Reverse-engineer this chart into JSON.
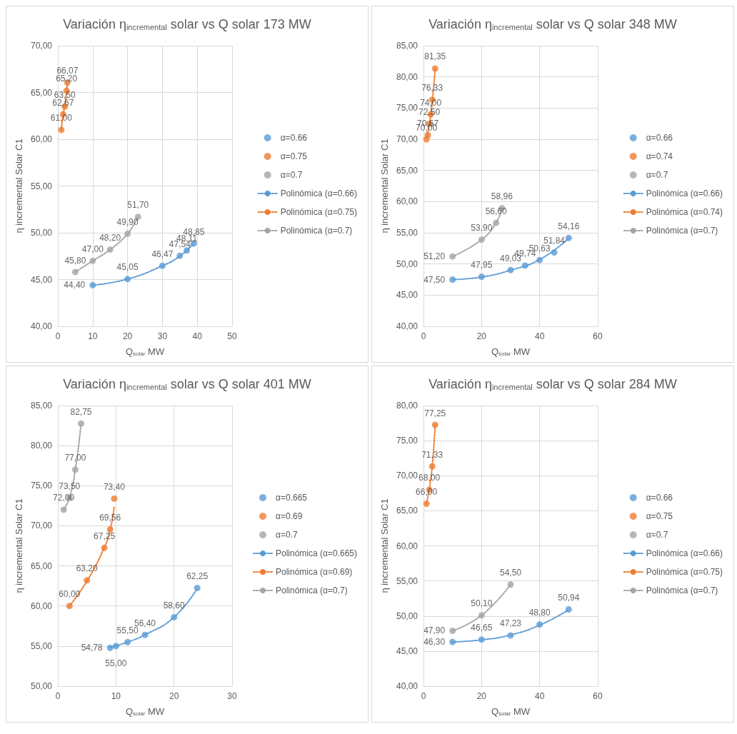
{
  "chart_data": [
    {
      "type": "scatter",
      "title": "Variación η$_{incremental}$ solar vs Q solar 173 MW",
      "xlabel": "Q$_{solar}$ MW",
      "ylabel": "η incremental Solar C1",
      "xlim": [
        0,
        50
      ],
      "xticks": [
        0,
        10,
        20,
        30,
        40,
        50
      ],
      "ylim": [
        40,
        70
      ],
      "yticks": [
        {
          "value": 40,
          "label": "40,00"
        },
        {
          "value": 45,
          "label": "45,00"
        },
        {
          "value": 50,
          "label": "50,00"
        },
        {
          "value": 55,
          "label": "55,00"
        },
        {
          "value": 60,
          "label": "60,00"
        },
        {
          "value": 65,
          "label": "65,00"
        },
        {
          "value": 70,
          "label": "70,00"
        }
      ],
      "grid": true,
      "legend": "right",
      "marker": "circle",
      "series": [
        {
          "name": "α=0.66",
          "color": "#5b9bd5",
          "x": [
            10,
            20,
            30,
            35,
            37,
            39
          ],
          "values": [
            44.4,
            45.05,
            46.47,
            47.54,
            48.11,
            48.85
          ],
          "value_labels": [
            "44,40",
            "45,05",
            "46,47",
            "47,54",
            "48,11",
            "48,85"
          ]
        },
        {
          "name": "α=0.75",
          "color": "#ed7d31",
          "x": [
            1,
            1.5,
            2,
            2.5,
            2.75
          ],
          "values": [
            61,
            62.67,
            63.5,
            65.2,
            66.07
          ],
          "value_labels": [
            "61,00",
            "62,67",
            "63,50",
            "65,20",
            "66,07"
          ]
        },
        {
          "name": "α=0.7",
          "color": "#a5a5a5",
          "x": [
            5,
            10,
            15,
            20,
            23
          ],
          "values": [
            45.8,
            47,
            48.2,
            49.9,
            51.7
          ],
          "value_labels": [
            "45,80",
            "47,00",
            "48,20",
            "49,90",
            "51,70"
          ]
        },
        {
          "name": "Polinómica (α=0.66)",
          "type": "line",
          "color": "#5b9bd5",
          "line_style": "dotted",
          "marker": "none",
          "x": [
            10,
            20,
            30,
            35,
            39
          ],
          "values": [
            44.4,
            45.05,
            46.47,
            47.5,
            48.85
          ]
        },
        {
          "name": "Polinómica (α=0.75)",
          "type": "line",
          "color": "#ed7d31",
          "line_style": "dotted",
          "marker": "none",
          "x": [
            1,
            1.5,
            2,
            2.5,
            2.75
          ],
          "values": [
            61,
            62.6,
            63.6,
            65.1,
            66.1
          ]
        },
        {
          "name": "Polinómica (α=0.7)",
          "type": "line",
          "color": "#a5a5a5",
          "line_style": "dotted",
          "marker": "none",
          "x": [
            5,
            10,
            15,
            20,
            23
          ],
          "values": [
            45.8,
            47,
            48.2,
            49.9,
            51.7
          ]
        }
      ]
    },
    {
      "type": "scatter",
      "title": "Variación η$_{incremental}$ solar vs Q solar 348 MW",
      "xlabel": "Q$_{solar}$ MW",
      "ylabel": "η incremental Solar C1",
      "xlim": [
        0,
        60
      ],
      "xticks": [
        0,
        20,
        40,
        60
      ],
      "ylim": [
        40,
        85
      ],
      "yticks": [
        {
          "value": 40,
          "label": "40,00"
        },
        {
          "value": 45,
          "label": "45,00"
        },
        {
          "value": 50,
          "label": "50,00"
        },
        {
          "value": 55,
          "label": "55,00"
        },
        {
          "value": 60,
          "label": "60,00"
        },
        {
          "value": 65,
          "label": "65,00"
        },
        {
          "value": 70,
          "label": "70,00"
        },
        {
          "value": 75,
          "label": "75,00"
        },
        {
          "value": 80,
          "label": "80,00"
        },
        {
          "value": 85,
          "label": "85,00"
        }
      ],
      "grid": true,
      "legend": "right",
      "marker": "circle",
      "series": [
        {
          "name": "α=0.66",
          "color": "#5b9bd5",
          "x": [
            10,
            20,
            30,
            35,
            40,
            45,
            50
          ],
          "values": [
            47.5,
            47.95,
            49.03,
            49.74,
            50.63,
            51.84,
            54.16
          ],
          "value_labels": [
            "47,50",
            "47,95",
            "49,03",
            "49,74",
            "50,63",
            "51,84",
            "54,16"
          ]
        },
        {
          "name": "α=0.74",
          "color": "#ed7d31",
          "x": [
            1,
            1.5,
            2,
            2.5,
            3,
            4
          ],
          "values": [
            70,
            70.67,
            72.5,
            74,
            76.33,
            81.35
          ],
          "value_labels": [
            "70,00",
            "70,67",
            "72,50",
            "74,00",
            "76,33",
            "81,35"
          ]
        },
        {
          "name": "α=0.7",
          "color": "#a5a5a5",
          "x": [
            10,
            20,
            25,
            27
          ],
          "values": [
            51.2,
            53.9,
            56.6,
            58.96
          ],
          "value_labels": [
            "51,20",
            "53,90",
            "56,60",
            "58,96"
          ]
        },
        {
          "name": "Polinómica (α=0.66)",
          "type": "line",
          "color": "#5b9bd5",
          "line_style": "dotted",
          "marker": "none",
          "x": [
            10,
            20,
            30,
            40,
            50
          ],
          "values": [
            47.5,
            47.9,
            49,
            50.7,
            54.1
          ]
        },
        {
          "name": "Polinómica (α=0.74)",
          "type": "line",
          "color": "#ed7d31",
          "line_style": "dotted",
          "marker": "none",
          "x": [
            1,
            2,
            3,
            4
          ],
          "values": [
            70.2,
            72.3,
            76,
            81.3
          ]
        },
        {
          "name": "Polinómica (α=0.7)",
          "type": "line",
          "color": "#a5a5a5",
          "line_style": "dotted",
          "marker": "none",
          "x": [
            10,
            20,
            25,
            27
          ],
          "values": [
            51.2,
            53.9,
            56.6,
            58.96
          ]
        }
      ]
    },
    {
      "type": "scatter",
      "title": "Variación η$_{incremental}$ solar vs Q solar 401 MW",
      "xlabel": "Q$_{solar}$ MW",
      "ylabel": "η incremental Solar C1",
      "xlim": [
        0,
        30
      ],
      "xticks": [
        0,
        10,
        20,
        30
      ],
      "ylim": [
        50,
        85
      ],
      "yticks": [
        {
          "value": 50,
          "label": "50,00"
        },
        {
          "value": 55,
          "label": "55,00"
        },
        {
          "value": 60,
          "label": "60,00"
        },
        {
          "value": 65,
          "label": "65,00"
        },
        {
          "value": 70,
          "label": "70,00"
        },
        {
          "value": 75,
          "label": "75,00"
        },
        {
          "value": 80,
          "label": "80,00"
        },
        {
          "value": 85,
          "label": "85,00"
        }
      ],
      "grid": true,
      "legend": "right",
      "marker": "circle",
      "series": [
        {
          "name": "α=0.665",
          "color": "#5b9bd5",
          "x": [
            9,
            10,
            12,
            15,
            20,
            24
          ],
          "values": [
            54.78,
            55,
            55.5,
            56.4,
            58.6,
            62.25
          ],
          "value_labels": [
            "54,78",
            "55,00",
            "55,50",
            "56,40",
            "58,60",
            "62,25"
          ]
        },
        {
          "name": "α=0.69",
          "color": "#ed7d31",
          "x": [
            2,
            5,
            8,
            9,
            9.7
          ],
          "values": [
            60,
            63.2,
            67.25,
            69.56,
            73.4
          ],
          "value_labels": [
            "60,00",
            "63,20",
            "67,25",
            "69,56",
            "73,40"
          ]
        },
        {
          "name": "α=0.7",
          "color": "#a5a5a5",
          "x": [
            1,
            2,
            3,
            4
          ],
          "values": [
            72,
            73.5,
            77,
            82.75
          ],
          "value_labels": [
            "72,00",
            "73,50",
            "77,00",
            "82,75"
          ]
        },
        {
          "name": "Polinómica (α=0.665)",
          "type": "line",
          "color": "#5b9bd5",
          "line_style": "dotted",
          "marker": "none",
          "x": [
            9,
            12,
            15,
            20,
            24
          ],
          "values": [
            54.8,
            55.5,
            56.4,
            58.6,
            62.2
          ]
        },
        {
          "name": "Polinómica (α=0.69)",
          "type": "line",
          "color": "#ed7d31",
          "line_style": "dotted",
          "marker": "none",
          "x": [
            2,
            5,
            8,
            9,
            9.7
          ],
          "values": [
            60,
            63.1,
            67.3,
            69.5,
            72.3
          ]
        },
        {
          "name": "Polinómica (α=0.7)",
          "type": "line",
          "color": "#a5a5a5",
          "line_style": "dotted",
          "marker": "none",
          "x": [
            1,
            2,
            3,
            4
          ],
          "values": [
            72,
            73.5,
            77,
            82.75
          ]
        }
      ]
    },
    {
      "type": "scatter",
      "title": "Variación η$_{incremental}$ solar vs Q solar 284 MW",
      "xlabel": "Q$_{solar}$ MW",
      "ylabel": "η incremental Solar C1",
      "xlim": [
        0,
        60
      ],
      "xticks": [
        0,
        20,
        40,
        60
      ],
      "ylim": [
        40,
        80
      ],
      "yticks": [
        {
          "value": 40,
          "label": "40,00"
        },
        {
          "value": 45,
          "label": "45,00"
        },
        {
          "value": 50,
          "label": "50,00"
        },
        {
          "value": 55,
          "label": "55,00"
        },
        {
          "value": 60,
          "label": "60,00"
        },
        {
          "value": 65,
          "label": "65,00"
        },
        {
          "value": 70,
          "label": "70,00"
        },
        {
          "value": 75,
          "label": "75,00"
        },
        {
          "value": 80,
          "label": "80,00"
        }
      ],
      "grid": true,
      "legend": "right",
      "marker": "circle",
      "series": [
        {
          "name": "α=0.66",
          "color": "#5b9bd5",
          "x": [
            10,
            20,
            30,
            40,
            50
          ],
          "values": [
            46.3,
            46.65,
            47.23,
            48.8,
            50.94
          ],
          "value_labels": [
            "46,30",
            "46,65",
            "47,23",
            "48,80",
            "50,94"
          ]
        },
        {
          "name": "α=0.75",
          "color": "#ed7d31",
          "x": [
            1,
            2,
            3,
            4
          ],
          "values": [
            66,
            68,
            71.33,
            77.25
          ],
          "value_labels": [
            "66,00",
            "68,00",
            "71,33",
            "77,25"
          ]
        },
        {
          "name": "α=0.7",
          "color": "#a5a5a5",
          "x": [
            10,
            20,
            30
          ],
          "values": [
            47.9,
            50.1,
            54.5
          ],
          "value_labels": [
            "47,90",
            "50,10",
            "54,50"
          ]
        },
        {
          "name": "Polinómica (α=0.66)",
          "type": "line",
          "color": "#5b9bd5",
          "line_style": "dotted",
          "marker": "none",
          "x": [
            10,
            20,
            30,
            40,
            50
          ],
          "values": [
            46.3,
            46.6,
            47.3,
            48.7,
            50.9
          ]
        },
        {
          "name": "Polinómica (α=0.75)",
          "type": "line",
          "color": "#ed7d31",
          "line_style": "dotted",
          "marker": "none",
          "x": [
            1,
            2,
            3,
            4
          ],
          "values": [
            66,
            68.1,
            71.3,
            77.2
          ]
        },
        {
          "name": "Polinómica (α=0.7)",
          "type": "line",
          "color": "#a5a5a5",
          "line_style": "dotted",
          "marker": "none",
          "x": [
            10,
            20,
            30
          ],
          "values": [
            47.9,
            50.1,
            54.5
          ]
        }
      ]
    }
  ]
}
